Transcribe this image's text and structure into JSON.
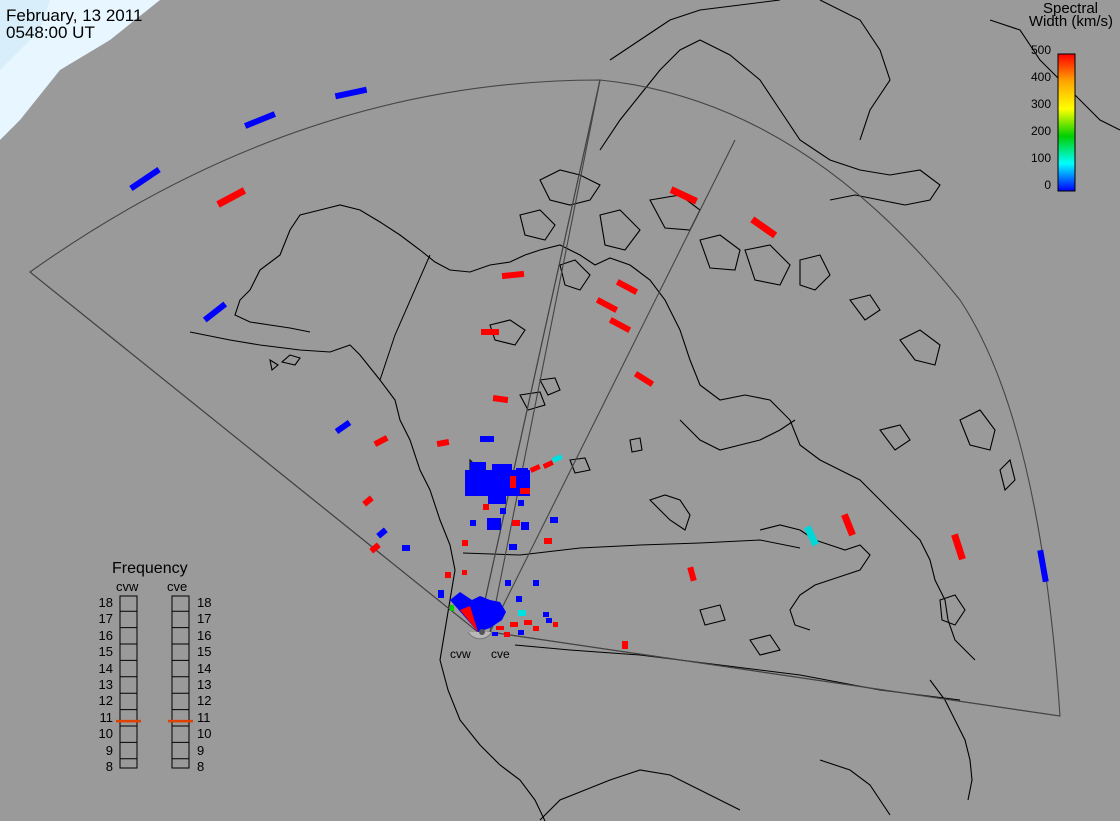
{
  "header": {
    "date": "February, 13 2011",
    "time": "0548:00 UT"
  },
  "colorbar": {
    "title_line1": "Spectral",
    "title_line2": "Width (km/s)",
    "ticks": [
      "500",
      "400",
      "300",
      "200",
      "100",
      "0"
    ],
    "value_range": [
      0,
      500
    ],
    "colors": {
      "high": "#ff0000",
      "upper": "#ffa500",
      "mid": "#ffff00",
      "lower_mid": "#00d000",
      "low_mid": "#00ffff",
      "low": "#0000ff"
    }
  },
  "frequency_panel": {
    "title": "Frequency",
    "radars": [
      {
        "name": "cvw",
        "frequency_mhz": 10.8,
        "marker_color": "#e04000"
      },
      {
        "name": "cve",
        "frequency_mhz": 10.8,
        "marker_color": "#e04000"
      }
    ],
    "scale": [
      "18",
      "17",
      "16",
      "15",
      "14",
      "13",
      "12",
      "11",
      "10",
      "9",
      "8"
    ]
  },
  "radar_sites": {
    "west_label": "cvw",
    "east_label": "cve"
  },
  "map_colors": {
    "background": "#9a9a9a",
    "coastline": "#000000",
    "fov_outline": "#444444",
    "ice": "#e8f6ff"
  }
}
